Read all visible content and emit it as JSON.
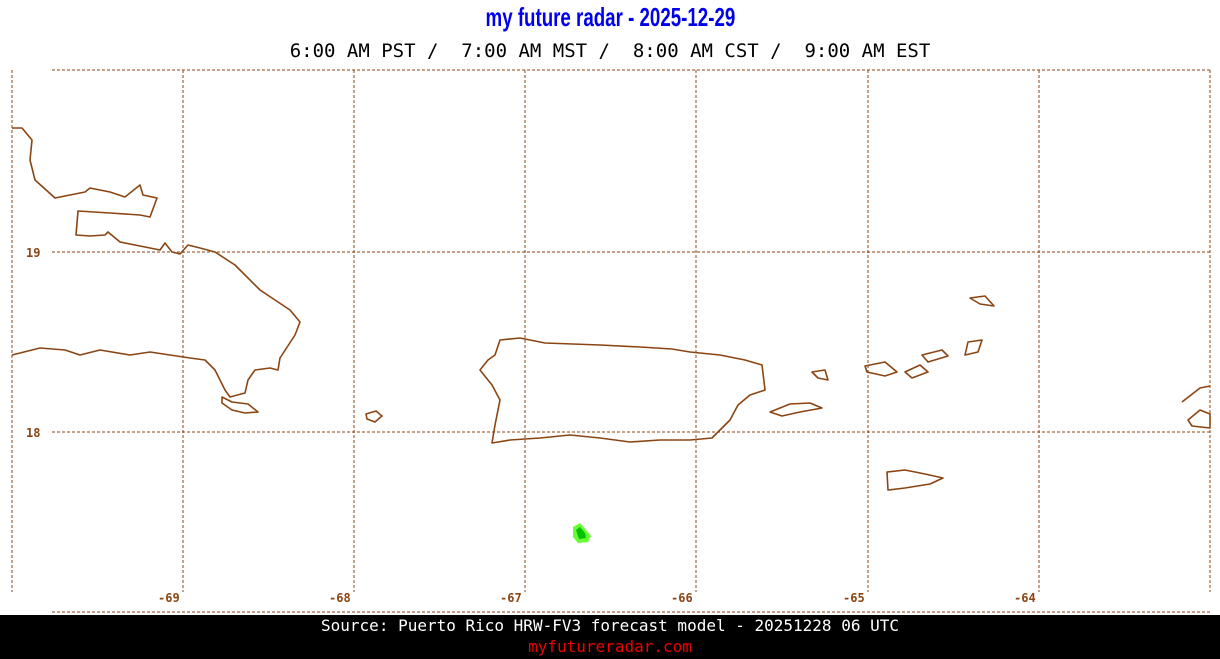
{
  "header": {
    "title": "my future radar - 2025-12-29",
    "times": "6:00 AM PST /  7:00 AM MST /  8:00 AM CST /  9:00 AM EST"
  },
  "map": {
    "region": "Puerto Rico",
    "latitude_labels": [
      "19",
      "18"
    ],
    "longitude_labels": [
      "-69",
      "-68",
      "-67",
      "-66",
      "-65",
      "-64"
    ],
    "coastline_color": "#8b4513",
    "grid_color": "#8b4513",
    "precip_colors": [
      "#00e000",
      "#66ff33"
    ]
  },
  "footer": {
    "source": "Source: Puerto Rico HRW-FV3 forecast model - 20251228 06 UTC",
    "site": "myfutureradar.com"
  }
}
